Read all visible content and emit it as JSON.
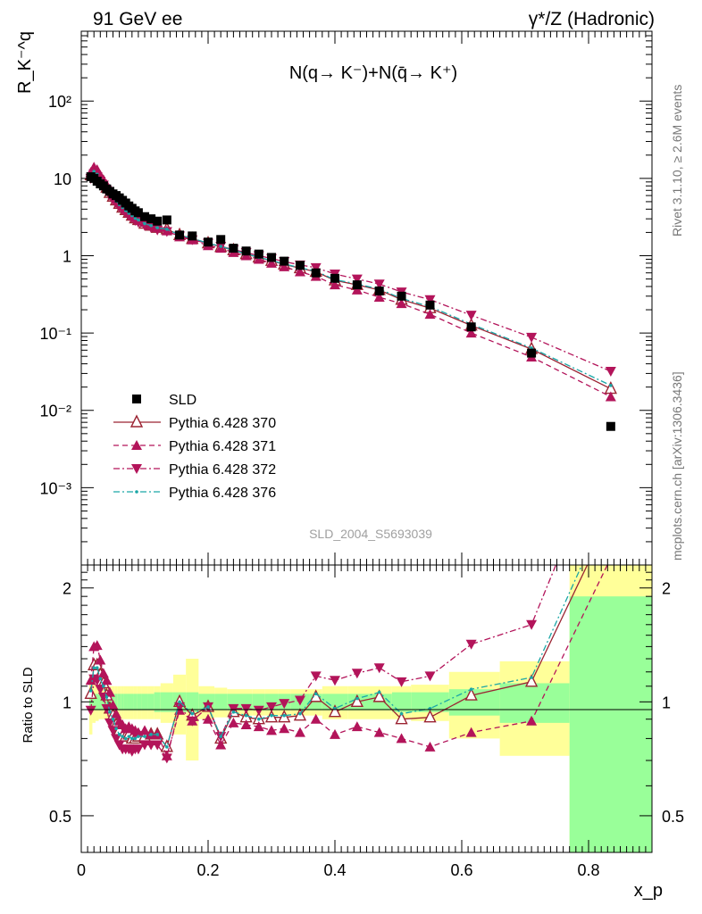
{
  "header": {
    "left": "91 GeV ee",
    "right": "γ*/Z (Hadronic)",
    "side_top": "Rivet 3.1.10, ≥ 2.6M events",
    "side_bottom": "mcplots.cern.ch [arXiv:1306.3436]",
    "analysis": "SLD_2004_S5693039"
  },
  "chart_data": {
    "type": "scatter",
    "title": "N(q→ K⁻)+N(q̄→ K⁺)",
    "ylabel": "R_K⁻^q",
    "ratio_ylabel": "Ratio to SLD",
    "xlabel": "x_p",
    "xlim": [
      0,
      0.9
    ],
    "ylim": [
      0.0001,
      800
    ],
    "yscale": "log",
    "ratio_ylim": [
      0.4,
      2.3
    ],
    "ratio_yscale": "log",
    "x_ticks": [
      0,
      0.2,
      0.4,
      0.6,
      0.8
    ],
    "x_tick_labels": [
      "0",
      "0.2",
      "0.4",
      "0.6",
      "0.8"
    ],
    "y_ticks": [
      0.001,
      0.01,
      0.1,
      1,
      10,
      100
    ],
    "y_tick_labels": [
      "10⁻³",
      "10⁻²",
      "10⁻¹",
      "1",
      "10",
      "10²"
    ],
    "ratio_ticks": [
      0.5,
      1,
      2
    ],
    "ratio_tick_labels": [
      "0.5",
      "1",
      "2"
    ],
    "legend_position": "bottom-left",
    "x": [
      0.015,
      0.02,
      0.025,
      0.03,
      0.035,
      0.04,
      0.045,
      0.05,
      0.055,
      0.06,
      0.065,
      0.07,
      0.075,
      0.08,
      0.085,
      0.09,
      0.1,
      0.11,
      0.12,
      0.135,
      0.155,
      0.175,
      0.2,
      0.22,
      0.24,
      0.26,
      0.28,
      0.3,
      0.32,
      0.345,
      0.37,
      0.4,
      0.435,
      0.47,
      0.505,
      0.55,
      0.615,
      0.71,
      0.835
    ],
    "series": [
      {
        "name": "SLD",
        "color": "#000000",
        "marker": "square",
        "line": "none",
        "values": [
          10.5,
          10.0,
          9.2,
          8.5,
          8.0,
          7.3,
          6.8,
          6.3,
          6.0,
          5.6,
          5.2,
          4.8,
          4.4,
          4.1,
          3.8,
          3.6,
          3.2,
          3.0,
          2.8,
          2.9,
          1.85,
          1.8,
          1.5,
          1.62,
          1.25,
          1.15,
          1.05,
          0.95,
          0.85,
          0.75,
          0.6,
          0.51,
          0.42,
          0.35,
          0.3,
          0.23,
          0.12,
          0.055,
          0.0062
        ]
      },
      {
        "name": "Pythia 6.428 370",
        "color": "#9b2332",
        "marker": "triangle-up-open",
        "line": "solid",
        "values": [
          11.0,
          12.5,
          11.5,
          10.0,
          9.0,
          7.6,
          6.5,
          5.8,
          5.2,
          4.7,
          4.2,
          3.9,
          3.6,
          3.3,
          3.05,
          2.9,
          2.6,
          2.45,
          2.3,
          2.2,
          1.85,
          1.65,
          1.45,
          1.3,
          1.18,
          1.05,
          0.95,
          0.86,
          0.77,
          0.69,
          0.62,
          0.48,
          0.42,
          0.36,
          0.27,
          0.21,
          0.125,
          0.062,
          0.019
        ]
      },
      {
        "name": "Pythia 6.428 371",
        "color": "#b3145a",
        "marker": "triangle-up",
        "line": "dashed",
        "values": [
          12.0,
          14.0,
          13.0,
          11.0,
          9.5,
          8.3,
          7.2,
          6.2,
          5.6,
          5.0,
          4.5,
          4.1,
          3.8,
          3.5,
          3.2,
          3.0,
          2.7,
          2.45,
          2.3,
          2.1,
          1.75,
          1.6,
          1.35,
          1.25,
          1.1,
          1.0,
          0.9,
          0.8,
          0.72,
          0.62,
          0.54,
          0.42,
          0.36,
          0.29,
          0.24,
          0.175,
          0.1,
          0.049,
          0.015
        ]
      },
      {
        "name": "Pythia 6.428 372",
        "color": "#b3145a",
        "marker": "triangle-down",
        "line": "dashdot",
        "values": [
          10.0,
          11.5,
          10.5,
          9.2,
          8.2,
          7.0,
          6.0,
          5.3,
          4.8,
          4.3,
          3.9,
          3.6,
          3.3,
          3.05,
          2.85,
          2.7,
          2.45,
          2.3,
          2.15,
          2.05,
          1.8,
          1.6,
          1.45,
          1.32,
          1.2,
          1.1,
          1.0,
          0.92,
          0.84,
          0.76,
          0.7,
          0.58,
          0.5,
          0.43,
          0.34,
          0.27,
          0.17,
          0.088,
          0.032
        ]
      },
      {
        "name": "Pythia 6.428 376",
        "color": "#1aa6a6",
        "marker": "dot",
        "line": "dashdot",
        "values": [
          11.2,
          12.3,
          11.3,
          9.8,
          8.8,
          7.5,
          6.4,
          5.7,
          5.1,
          4.6,
          4.2,
          3.85,
          3.55,
          3.3,
          3.05,
          2.9,
          2.6,
          2.45,
          2.3,
          2.2,
          1.85,
          1.68,
          1.45,
          1.32,
          1.18,
          1.06,
          0.95,
          0.87,
          0.78,
          0.7,
          0.63,
          0.49,
          0.43,
          0.37,
          0.28,
          0.22,
          0.13,
          0.064,
          0.021
        ]
      }
    ],
    "ratio_series": [
      {
        "name": "Pythia 6.428 370",
        "values": [
          1.05,
          1.25,
          1.25,
          1.18,
          1.12,
          1.04,
          0.96,
          0.92,
          0.87,
          0.84,
          0.81,
          0.81,
          0.82,
          0.8,
          0.8,
          0.81,
          0.81,
          0.82,
          0.82,
          0.76,
          1.0,
          0.92,
          0.97,
          0.8,
          0.94,
          0.91,
          0.9,
          0.91,
          0.91,
          0.92,
          1.03,
          0.94,
          1.0,
          1.03,
          0.9,
          0.91,
          1.04,
          1.13,
          3.1
        ]
      },
      {
        "name": "Pythia 6.428 371",
        "values": [
          1.14,
          1.4,
          1.41,
          1.29,
          1.19,
          1.14,
          1.06,
          0.98,
          0.93,
          0.89,
          0.87,
          0.85,
          0.86,
          0.85,
          0.84,
          0.83,
          0.84,
          0.82,
          0.82,
          0.72,
          0.95,
          0.89,
          0.9,
          0.77,
          0.88,
          0.87,
          0.86,
          0.84,
          0.85,
          0.83,
          0.9,
          0.82,
          0.86,
          0.83,
          0.8,
          0.76,
          0.83,
          0.89,
          2.4
        ]
      },
      {
        "name": "Pythia 6.428 372",
        "values": [
          0.95,
          1.15,
          1.14,
          1.08,
          1.03,
          0.96,
          0.88,
          0.84,
          0.8,
          0.77,
          0.75,
          0.75,
          0.75,
          0.74,
          0.75,
          0.75,
          0.77,
          0.77,
          0.77,
          0.71,
          0.97,
          0.89,
          0.97,
          0.81,
          0.96,
          0.96,
          0.95,
          0.97,
          0.99,
          1.01,
          1.17,
          1.14,
          1.19,
          1.23,
          1.13,
          1.17,
          1.42,
          1.6,
          5.2
        ]
      },
      {
        "name": "Pythia 6.428 376",
        "values": [
          1.07,
          1.23,
          1.23,
          1.15,
          1.1,
          1.03,
          0.94,
          0.9,
          0.85,
          0.82,
          0.81,
          0.8,
          0.81,
          0.8,
          0.8,
          0.81,
          0.81,
          0.82,
          0.82,
          0.76,
          1.0,
          0.93,
          0.97,
          0.81,
          0.94,
          0.92,
          0.9,
          0.92,
          0.92,
          0.93,
          1.05,
          0.96,
          1.02,
          1.06,
          0.93,
          0.96,
          1.08,
          1.16,
          3.4
        ]
      }
    ],
    "ratio_bands": {
      "x_edges": [
        0.0125,
        0.0175,
        0.0225,
        0.0275,
        0.0325,
        0.0375,
        0.0425,
        0.0475,
        0.0525,
        0.0575,
        0.0625,
        0.0675,
        0.0725,
        0.0775,
        0.0825,
        0.0875,
        0.095,
        0.105,
        0.115,
        0.125,
        0.145,
        0.165,
        0.185,
        0.21,
        0.23,
        0.25,
        0.27,
        0.29,
        0.31,
        0.33,
        0.36,
        0.38,
        0.42,
        0.45,
        0.49,
        0.52,
        0.58,
        0.66,
        0.77,
        0.9
      ],
      "stat": [
        0.05,
        0.05,
        0.05,
        0.05,
        0.05,
        0.05,
        0.05,
        0.05,
        0.05,
        0.05,
        0.05,
        0.05,
        0.05,
        0.05,
        0.05,
        0.05,
        0.05,
        0.05,
        0.06,
        0.06,
        0.06,
        0.06,
        0.05,
        0.05,
        0.05,
        0.05,
        0.05,
        0.05,
        0.05,
        0.05,
        0.05,
        0.05,
        0.05,
        0.05,
        0.06,
        0.06,
        0.08,
        0.12,
        0.9
      ],
      "total": [
        0.18,
        0.12,
        0.11,
        0.1,
        0.1,
        0.1,
        0.1,
        0.1,
        0.1,
        0.1,
        0.1,
        0.1,
        0.1,
        0.1,
        0.1,
        0.1,
        0.1,
        0.1,
        0.1,
        0.12,
        0.18,
        0.3,
        0.1,
        0.09,
        0.08,
        0.08,
        0.08,
        0.08,
        0.08,
        0.08,
        0.08,
        0.1,
        0.1,
        0.1,
        0.1,
        0.11,
        0.2,
        0.28,
        1.35
      ]
    }
  }
}
